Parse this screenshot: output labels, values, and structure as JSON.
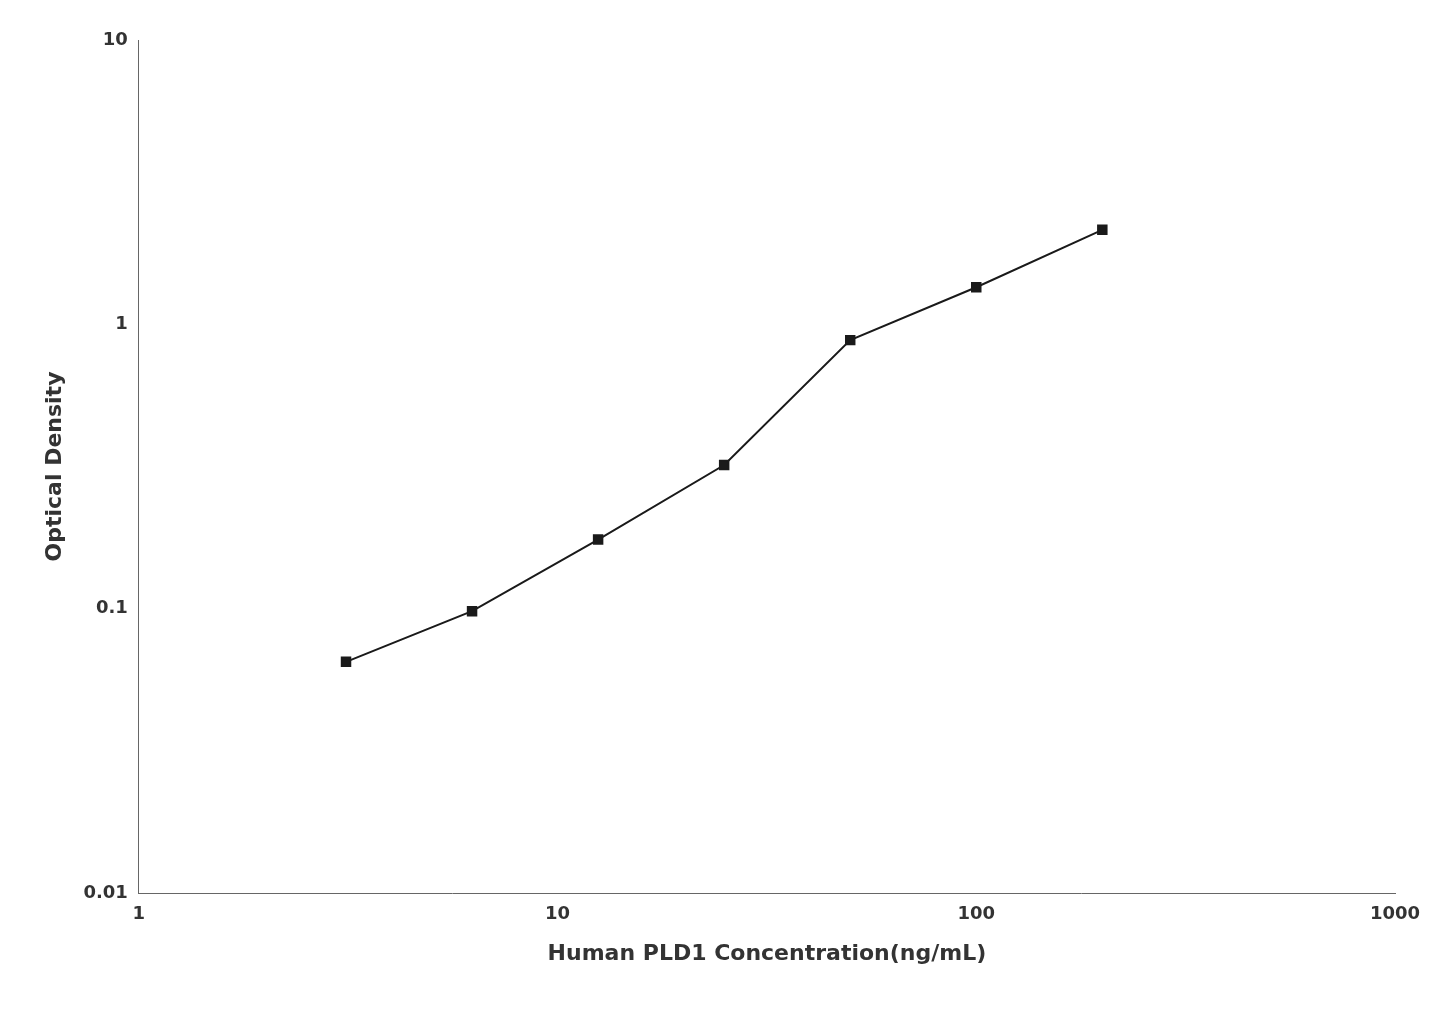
{
  "chart_data": {
    "type": "line",
    "x": [
      3.125,
      6.25,
      12.5,
      25,
      50,
      100,
      200
    ],
    "values": [
      0.065,
      0.098,
      0.175,
      0.32,
      0.88,
      1.35,
      2.15
    ],
    "xlabel": "Human PLD1 Concentration(ng/mL)",
    "ylabel": "Optical Density",
    "xlim": [
      1,
      1000
    ],
    "ylim": [
      0.01,
      10
    ],
    "xticks": [
      1,
      10,
      100,
      1000
    ],
    "yticks": [
      0.01,
      0.1,
      1,
      10
    ],
    "log": true,
    "color": "#1a1a1a",
    "marker": "square",
    "grid": false
  }
}
